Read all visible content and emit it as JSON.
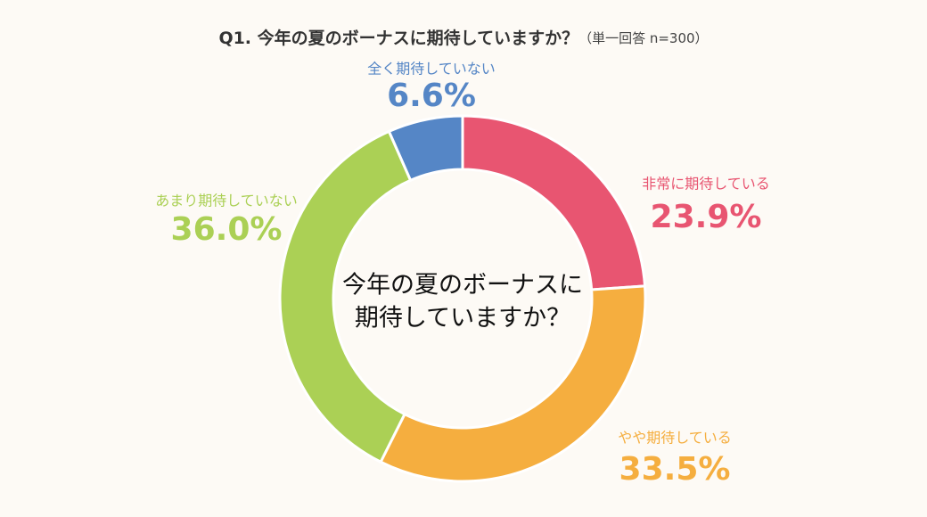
{
  "chart_data": {
    "type": "donut",
    "title": "Q1. 今年の夏のボーナスに期待していますか？",
    "subtitle": "（単一回答 n=300）",
    "center_text": [
      "今年の夏のボーナスに",
      "期待していますか？"
    ],
    "categories": [
      "非常に期待している",
      "やや期待している",
      "あまり期待していない",
      "全く期待していない"
    ],
    "values": [
      23.9,
      33.5,
      36.0,
      6.6
    ],
    "value_labels": [
      "23.9%",
      "33.5%",
      "36.0%",
      "6.6%"
    ],
    "colors": [
      "#e85571",
      "#f5ae3f",
      "#abd055",
      "#5586c6"
    ]
  }
}
